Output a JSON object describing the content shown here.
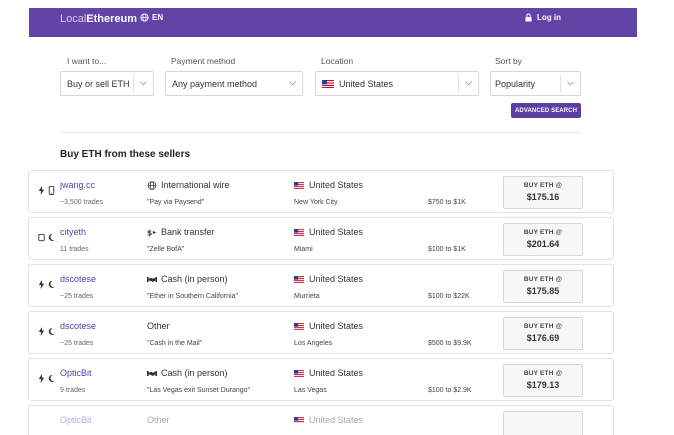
{
  "header": {
    "brand_light": "Local",
    "brand_bold": "Ethereum",
    "language": "EN",
    "login_label": "Log in"
  },
  "filters": {
    "want_label": "I want to...",
    "want_value": "Buy or sell ETH",
    "payment_label": "Payment method",
    "payment_value": "Any payment method",
    "location_label": "Location",
    "location_value": "United States",
    "sort_label": "Sort by",
    "sort_value": "Popularity",
    "advanced_label": "ADVANCED SEARCH"
  },
  "section_title": "Buy ETH from these sellers",
  "offers": [
    {
      "seller": "jwang.cc",
      "trades": "~3,500 trades",
      "method": "International wire",
      "method_icon": "globe-icon",
      "note": "\"Pay via Paysend\"",
      "country": "United States",
      "city": "New York City",
      "limits": "$750 to $1K",
      "buy_label": "BUY ETH @",
      "price": "$175.16",
      "status_icons": [
        "bolt-icon",
        "phone-icon"
      ]
    },
    {
      "seller": "cityeth",
      "trades": "11 trades",
      "method": "Bank transfer",
      "method_icon": "bank-transfer-icon",
      "note": "\"Zelle BofA\"",
      "country": "United States",
      "city": "Miami",
      "limits": "$100 to $1K",
      "buy_label": "BUY ETH @",
      "price": "$201.64",
      "status_icons": [
        "card-icon",
        "moon-icon"
      ]
    },
    {
      "seller": "dscotese",
      "trades": "~25 trades",
      "method": "Cash (in person)",
      "method_icon": "handshake-icon",
      "note": "\"Ether in Southern California\"",
      "country": "United States",
      "city": "Murrieta",
      "limits": "$100 to $22K",
      "buy_label": "BUY ETH @",
      "price": "$175.85",
      "status_icons": [
        "bolt-icon",
        "moon-icon"
      ]
    },
    {
      "seller": "dscotese",
      "trades": "~25 trades",
      "method": "Other",
      "method_icon": "",
      "note": "\"Cash in the Mail\"",
      "country": "United States",
      "city": "Los Angeles",
      "limits": "$500 to $9.9K",
      "buy_label": "BUY ETH @",
      "price": "$176.69",
      "status_icons": [
        "bolt-icon",
        "moon-icon"
      ]
    },
    {
      "seller": "OpticBit",
      "trades": "9 trades",
      "method": "Cash (in person)",
      "method_icon": "handshake-icon",
      "note": "\"Las Vegas exit Sunset Durango\"",
      "country": "United States",
      "city": "Las Vegas",
      "limits": "$100 to $2.9K",
      "buy_label": "BUY ETH @",
      "price": "$179.13",
      "status_icons": [
        "bolt-icon",
        "moon-icon"
      ]
    },
    {
      "seller": "OpticBit",
      "trades": "",
      "method": "Other",
      "method_icon": "",
      "note": "",
      "country": "United States",
      "city": "",
      "limits": "",
      "buy_label": "",
      "price": "",
      "status_icons": []
    }
  ],
  "colors": {
    "header": "#6244a6",
    "accent": "#5c3fa0",
    "seller_link": "#5b3ea6"
  }
}
